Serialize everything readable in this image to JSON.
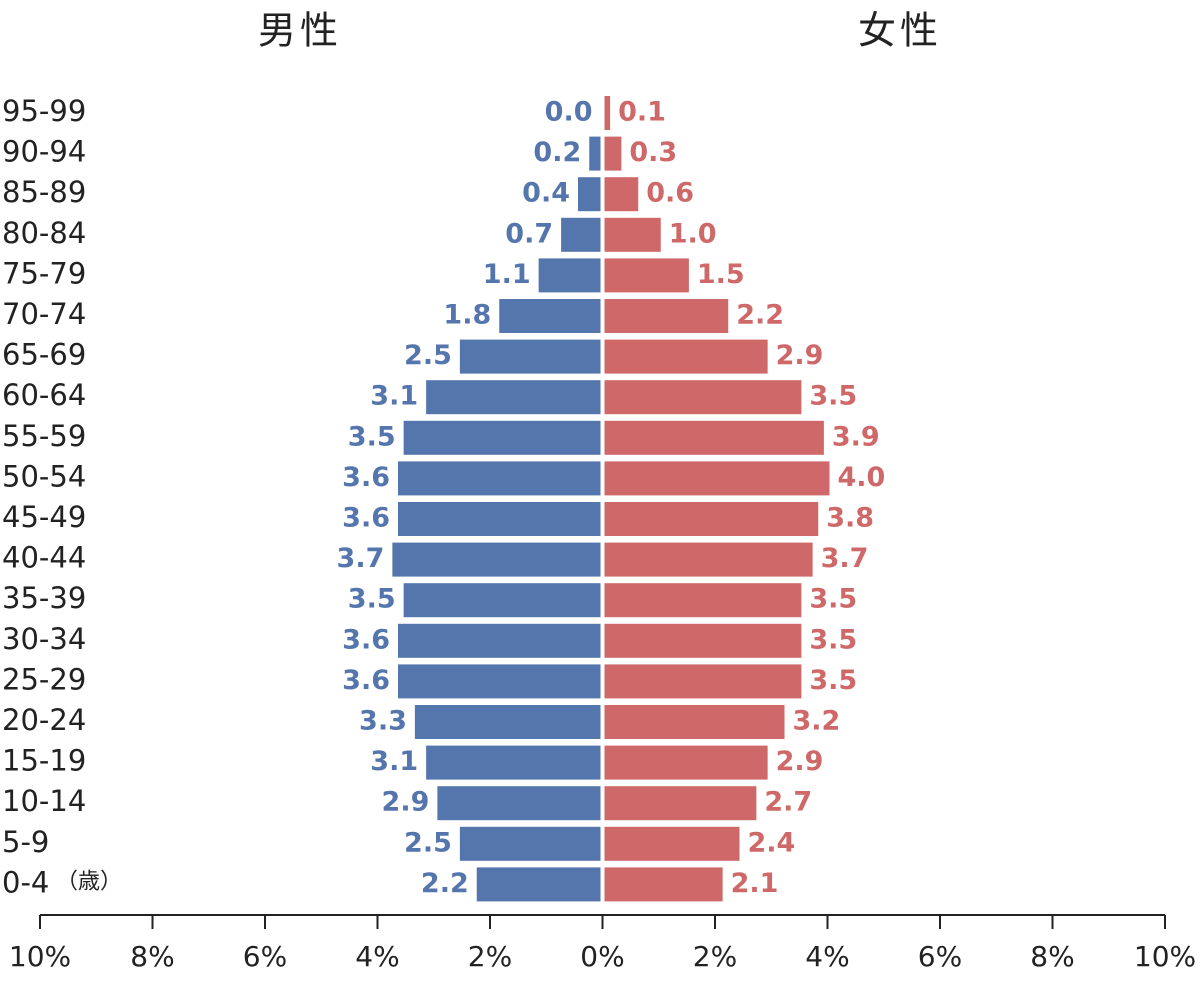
{
  "chart_data": {
    "type": "pyramid",
    "categories": [
      "95-99",
      "90-94",
      "85-89",
      "80-84",
      "75-79",
      "70-74",
      "65-69",
      "60-64",
      "55-59",
      "50-54",
      "45-49",
      "40-44",
      "35-39",
      "30-34",
      "25-29",
      "20-24",
      "15-19",
      "10-14",
      "5-9",
      "0-4"
    ],
    "category_unit": "（歳）",
    "series": [
      {
        "name": "男性",
        "color": "#5575ad",
        "side": "left",
        "values": [
          0.0,
          0.2,
          0.4,
          0.7,
          1.1,
          1.8,
          2.5,
          3.1,
          3.5,
          3.6,
          3.6,
          3.7,
          3.5,
          3.6,
          3.6,
          3.3,
          3.1,
          2.9,
          2.5,
          2.2
        ],
        "value_labels": [
          "0.0",
          "0.2",
          "0.4",
          "0.7",
          "1.1",
          "1.8",
          "2.5",
          "3.1",
          "3.5",
          "3.6",
          "3.6",
          "3.7",
          "3.5",
          "3.6",
          "3.6",
          "3.3",
          "3.1",
          "2.9",
          "2.5",
          "2.2"
        ]
      },
      {
        "name": "女性",
        "color": "#cf6868",
        "side": "right",
        "values": [
          0.1,
          0.3,
          0.6,
          1.0,
          1.5,
          2.2,
          2.9,
          3.5,
          3.9,
          4.0,
          3.8,
          3.7,
          3.5,
          3.5,
          3.5,
          3.2,
          2.9,
          2.7,
          2.4,
          2.1
        ],
        "value_labels": [
          "0.1",
          "0.3",
          "0.6",
          "1.0",
          "1.5",
          "2.2",
          "2.9",
          "3.5",
          "3.9",
          "4.0",
          "3.8",
          "3.7",
          "3.5",
          "3.5",
          "3.5",
          "3.2",
          "2.9",
          "2.7",
          "2.4",
          "2.1"
        ]
      }
    ],
    "xlim": [
      -10,
      10
    ],
    "xticks": [
      {
        "value": -10,
        "label": "10%"
      },
      {
        "value": -8,
        "label": "8%"
      },
      {
        "value": -6,
        "label": "6%"
      },
      {
        "value": -4,
        "label": "4%"
      },
      {
        "value": -2,
        "label": "2%"
      },
      {
        "value": 0,
        "label": "0%"
      },
      {
        "value": 2,
        "label": "2%"
      },
      {
        "value": 4,
        "label": "4%"
      },
      {
        "value": 6,
        "label": "6%"
      },
      {
        "value": 8,
        "label": "8%"
      },
      {
        "value": 10,
        "label": "10%"
      }
    ]
  }
}
